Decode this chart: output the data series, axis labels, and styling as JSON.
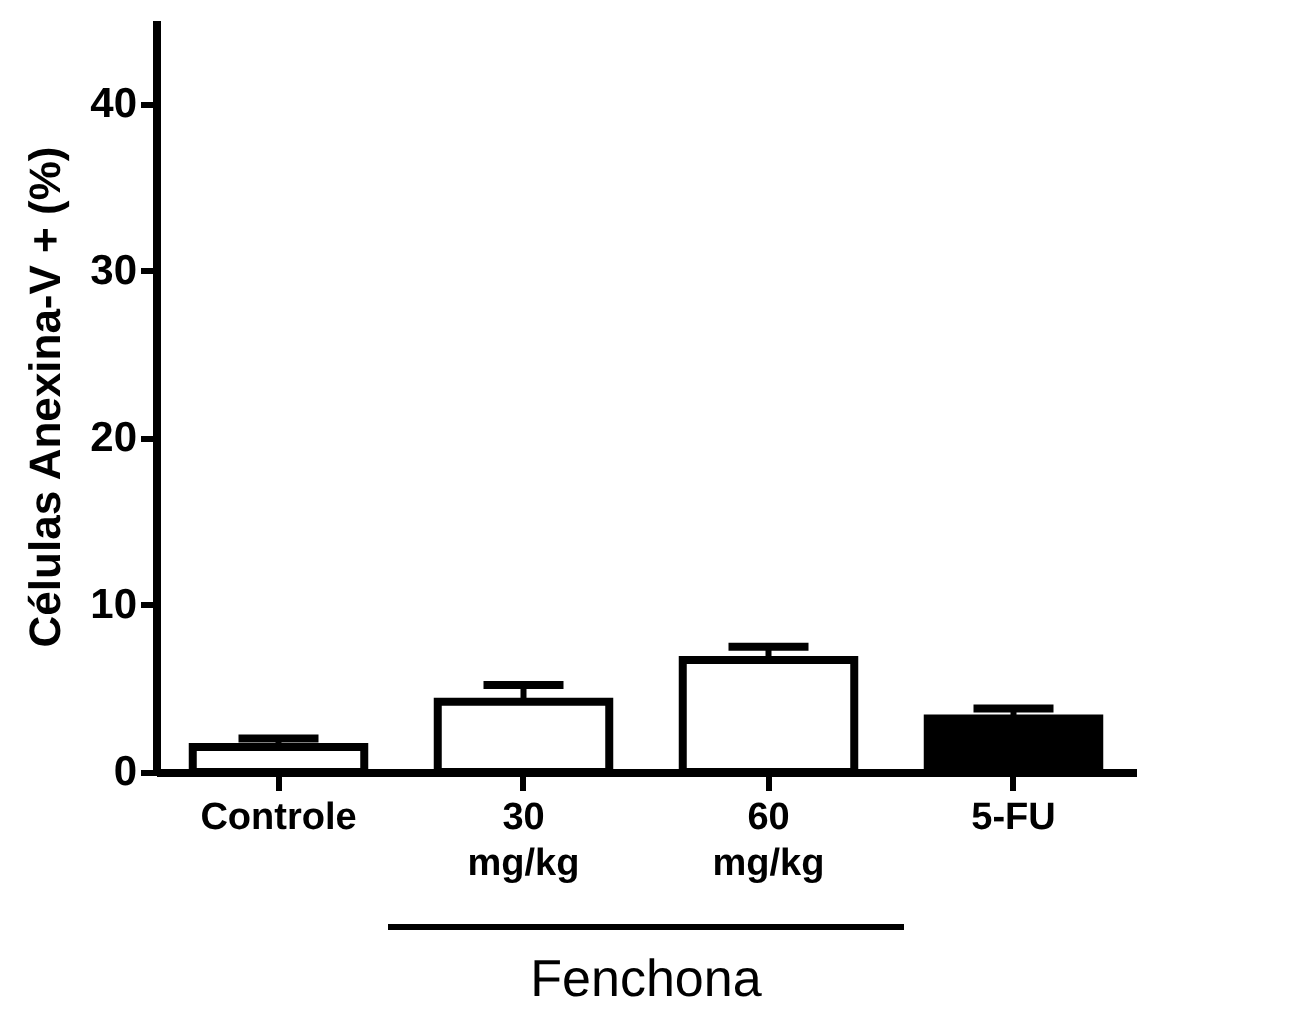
{
  "chart_data": {
    "type": "bar",
    "ylabel": "Células Anexina-V + (%)",
    "categories": [
      "Controle",
      "30 mg/kg",
      "60 mg/kg",
      "5-FU"
    ],
    "values": [
      1.5,
      4.2,
      6.7,
      3.2
    ],
    "errors": [
      0.5,
      1.0,
      0.8,
      0.6
    ],
    "colors": [
      "#ffffff",
      "#ffffff",
      "#ffffff",
      "#000000"
    ],
    "ylim": [
      0,
      45
    ],
    "yticks": [
      0,
      10,
      20,
      30,
      40
    ],
    "annotations": [
      "Fenchona"
    ]
  }
}
